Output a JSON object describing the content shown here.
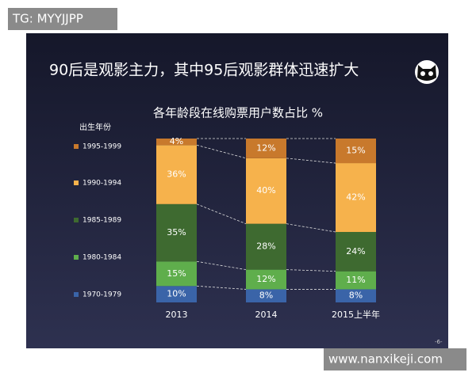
{
  "watermark": "TG: MYYJJPP",
  "slide_title": "90后是观影主力，其中95后观影群体迅速扩大",
  "footer_watermark": "www.nanxikeji.com",
  "page_number": "-6-",
  "chart_data": {
    "type": "stacked-bar",
    "title": "各年龄段在线购票用户数占比 %",
    "legend_title": "出生年份",
    "categories": [
      "2013",
      "2014",
      "2015上半年"
    ],
    "ylim": [
      0,
      100
    ],
    "series": [
      {
        "name": "1970-1979",
        "color": "#3a64a8",
        "values": [
          10,
          8,
          8
        ],
        "value_labels": [
          "10%",
          "8%",
          "8%"
        ]
      },
      {
        "name": "1980-1984",
        "color": "#5fae4c",
        "values": [
          15,
          12,
          11
        ],
        "value_labels": [
          "15%",
          "12%",
          "11%"
        ]
      },
      {
        "name": "1985-1989",
        "color": "#3e6a30",
        "values": [
          35,
          28,
          24
        ],
        "value_labels": [
          "35%",
          "28%",
          "24%"
        ]
      },
      {
        "name": "1990-1994",
        "color": "#f6b24c",
        "values": [
          36,
          40,
          42
        ],
        "value_labels": [
          "36%",
          "40%",
          "42%"
        ]
      },
      {
        "name": "1995-1999",
        "color": "#c8792c",
        "values": [
          4,
          12,
          15
        ],
        "value_labels": [
          "4%",
          "12%",
          "15%"
        ]
      }
    ]
  }
}
